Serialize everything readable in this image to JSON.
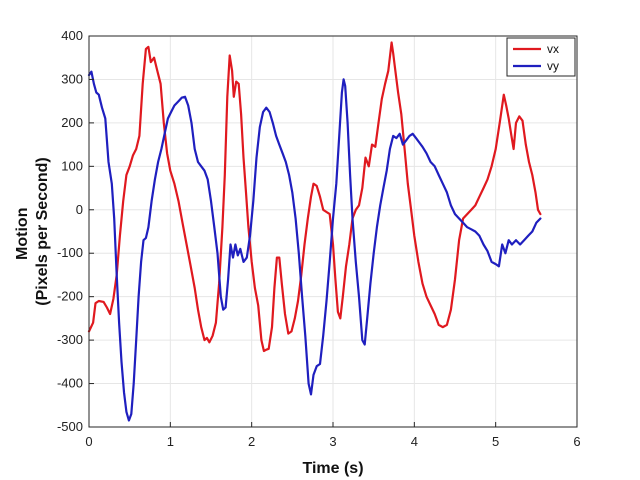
{
  "chart_data": {
    "type": "line",
    "title": "",
    "xlabel": "Time (s)",
    "ylabel_lines": [
      "Motion",
      "(Pixels per Second)"
    ],
    "xlim": [
      0,
      6
    ],
    "ylim": [
      -500,
      400
    ],
    "xticks": [
      0,
      1,
      2,
      3,
      4,
      5,
      6
    ],
    "yticks": [
      -500,
      -400,
      -300,
      -200,
      -100,
      0,
      100,
      200,
      300,
      400
    ],
    "grid": true,
    "legend_position": "top-right",
    "series": [
      {
        "name": "vx",
        "color": "#e0191f",
        "points": [
          [
            0.0,
            -280
          ],
          [
            0.05,
            -260
          ],
          [
            0.08,
            -215
          ],
          [
            0.12,
            -210
          ],
          [
            0.18,
            -212
          ],
          [
            0.22,
            -225
          ],
          [
            0.26,
            -240
          ],
          [
            0.3,
            -205
          ],
          [
            0.34,
            -150
          ],
          [
            0.38,
            -60
          ],
          [
            0.42,
            20
          ],
          [
            0.46,
            80
          ],
          [
            0.5,
            100
          ],
          [
            0.54,
            125
          ],
          [
            0.58,
            140
          ],
          [
            0.62,
            170
          ],
          [
            0.66,
            290
          ],
          [
            0.7,
            370
          ],
          [
            0.73,
            375
          ],
          [
            0.76,
            340
          ],
          [
            0.8,
            350
          ],
          [
            0.84,
            320
          ],
          [
            0.88,
            290
          ],
          [
            0.92,
            200
          ],
          [
            0.96,
            130
          ],
          [
            1.0,
            90
          ],
          [
            1.05,
            60
          ],
          [
            1.1,
            20
          ],
          [
            1.15,
            -30
          ],
          [
            1.2,
            -80
          ],
          [
            1.25,
            -130
          ],
          [
            1.3,
            -180
          ],
          [
            1.34,
            -230
          ],
          [
            1.38,
            -270
          ],
          [
            1.42,
            -300
          ],
          [
            1.45,
            -295
          ],
          [
            1.48,
            -305
          ],
          [
            1.52,
            -290
          ],
          [
            1.56,
            -260
          ],
          [
            1.6,
            -170
          ],
          [
            1.64,
            -40
          ],
          [
            1.67,
            80
          ],
          [
            1.7,
            260
          ],
          [
            1.73,
            355
          ],
          [
            1.76,
            320
          ],
          [
            1.78,
            260
          ],
          [
            1.81,
            295
          ],
          [
            1.84,
            290
          ],
          [
            1.87,
            220
          ],
          [
            1.9,
            120
          ],
          [
            1.93,
            40
          ],
          [
            1.96,
            -40
          ],
          [
            2.0,
            -120
          ],
          [
            2.04,
            -180
          ],
          [
            2.08,
            -220
          ],
          [
            2.12,
            -300
          ],
          [
            2.15,
            -325
          ],
          [
            2.18,
            -322
          ],
          [
            2.21,
            -320
          ],
          [
            2.25,
            -270
          ],
          [
            2.28,
            -180
          ],
          [
            2.31,
            -110
          ],
          [
            2.34,
            -110
          ],
          [
            2.37,
            -170
          ],
          [
            2.41,
            -240
          ],
          [
            2.45,
            -285
          ],
          [
            2.49,
            -280
          ],
          [
            2.53,
            -250
          ],
          [
            2.57,
            -210
          ],
          [
            2.61,
            -150
          ],
          [
            2.65,
            -80
          ],
          [
            2.69,
            -20
          ],
          [
            2.73,
            30
          ],
          [
            2.76,
            60
          ],
          [
            2.8,
            55
          ],
          [
            2.84,
            30
          ],
          [
            2.88,
            0
          ],
          [
            2.92,
            -5
          ],
          [
            2.96,
            -10
          ],
          [
            3.0,
            -80
          ],
          [
            3.03,
            -160
          ],
          [
            3.06,
            -235
          ],
          [
            3.09,
            -250
          ],
          [
            3.12,
            -200
          ],
          [
            3.16,
            -130
          ],
          [
            3.2,
            -80
          ],
          [
            3.24,
            -20
          ],
          [
            3.28,
            0
          ],
          [
            3.32,
            10
          ],
          [
            3.36,
            50
          ],
          [
            3.4,
            120
          ],
          [
            3.44,
            100
          ],
          [
            3.48,
            150
          ],
          [
            3.52,
            145
          ],
          [
            3.56,
            200
          ],
          [
            3.6,
            255
          ],
          [
            3.64,
            290
          ],
          [
            3.68,
            320
          ],
          [
            3.72,
            385
          ],
          [
            3.74,
            360
          ],
          [
            3.76,
            330
          ],
          [
            3.8,
            270
          ],
          [
            3.84,
            220
          ],
          [
            3.88,
            140
          ],
          [
            3.92,
            60
          ],
          [
            3.96,
            0
          ],
          [
            4.0,
            -60
          ],
          [
            4.05,
            -120
          ],
          [
            4.1,
            -170
          ],
          [
            4.15,
            -200
          ],
          [
            4.2,
            -220
          ],
          [
            4.25,
            -240
          ],
          [
            4.3,
            -265
          ],
          [
            4.35,
            -270
          ],
          [
            4.4,
            -265
          ],
          [
            4.45,
            -230
          ],
          [
            4.5,
            -160
          ],
          [
            4.55,
            -70
          ],
          [
            4.6,
            -20
          ],
          [
            4.65,
            -10
          ],
          [
            4.7,
            0
          ],
          [
            4.75,
            10
          ],
          [
            4.8,
            30
          ],
          [
            4.85,
            50
          ],
          [
            4.9,
            70
          ],
          [
            4.95,
            100
          ],
          [
            5.0,
            140
          ],
          [
            5.05,
            200
          ],
          [
            5.1,
            265
          ],
          [
            5.13,
            240
          ],
          [
            5.16,
            210
          ],
          [
            5.19,
            175
          ],
          [
            5.22,
            140
          ],
          [
            5.25,
            200
          ],
          [
            5.29,
            215
          ],
          [
            5.33,
            205
          ],
          [
            5.37,
            150
          ],
          [
            5.41,
            110
          ],
          [
            5.45,
            80
          ],
          [
            5.49,
            40
          ],
          [
            5.52,
            0
          ],
          [
            5.55,
            -10
          ]
        ]
      },
      {
        "name": "vy",
        "color": "#1f1fbf",
        "points": [
          [
            0.0,
            310
          ],
          [
            0.03,
            318
          ],
          [
            0.06,
            290
          ],
          [
            0.09,
            270
          ],
          [
            0.12,
            265
          ],
          [
            0.16,
            235
          ],
          [
            0.2,
            210
          ],
          [
            0.24,
            110
          ],
          [
            0.28,
            60
          ],
          [
            0.31,
            -20
          ],
          [
            0.34,
            -150
          ],
          [
            0.37,
            -260
          ],
          [
            0.4,
            -350
          ],
          [
            0.43,
            -420
          ],
          [
            0.46,
            -465
          ],
          [
            0.49,
            -485
          ],
          [
            0.52,
            -470
          ],
          [
            0.55,
            -400
          ],
          [
            0.58,
            -300
          ],
          [
            0.61,
            -200
          ],
          [
            0.64,
            -120
          ],
          [
            0.67,
            -70
          ],
          [
            0.7,
            -65
          ],
          [
            0.73,
            -40
          ],
          [
            0.77,
            20
          ],
          [
            0.81,
            70
          ],
          [
            0.85,
            110
          ],
          [
            0.89,
            140
          ],
          [
            0.93,
            175
          ],
          [
            0.97,
            210
          ],
          [
            1.01,
            225
          ],
          [
            1.05,
            240
          ],
          [
            1.1,
            250
          ],
          [
            1.14,
            258
          ],
          [
            1.18,
            260
          ],
          [
            1.22,
            240
          ],
          [
            1.26,
            200
          ],
          [
            1.3,
            140
          ],
          [
            1.34,
            110
          ],
          [
            1.38,
            100
          ],
          [
            1.42,
            90
          ],
          [
            1.46,
            70
          ],
          [
            1.5,
            20
          ],
          [
            1.54,
            -40
          ],
          [
            1.58,
            -100
          ],
          [
            1.62,
            -200
          ],
          [
            1.65,
            -230
          ],
          [
            1.68,
            -225
          ],
          [
            1.71,
            -160
          ],
          [
            1.74,
            -80
          ],
          [
            1.77,
            -110
          ],
          [
            1.8,
            -80
          ],
          [
            1.83,
            -105
          ],
          [
            1.86,
            -90
          ],
          [
            1.9,
            -120
          ],
          [
            1.94,
            -110
          ],
          [
            1.98,
            -60
          ],
          [
            2.02,
            20
          ],
          [
            2.06,
            120
          ],
          [
            2.1,
            190
          ],
          [
            2.14,
            225
          ],
          [
            2.18,
            235
          ],
          [
            2.22,
            225
          ],
          [
            2.26,
            200
          ],
          [
            2.3,
            170
          ],
          [
            2.34,
            150
          ],
          [
            2.38,
            130
          ],
          [
            2.42,
            110
          ],
          [
            2.46,
            80
          ],
          [
            2.5,
            40
          ],
          [
            2.54,
            -20
          ],
          [
            2.58,
            -100
          ],
          [
            2.62,
            -200
          ],
          [
            2.66,
            -290
          ],
          [
            2.7,
            -400
          ],
          [
            2.73,
            -425
          ],
          [
            2.76,
            -380
          ],
          [
            2.8,
            -360
          ],
          [
            2.84,
            -355
          ],
          [
            2.88,
            -290
          ],
          [
            2.92,
            -210
          ],
          [
            2.96,
            -120
          ],
          [
            3.0,
            -20
          ],
          [
            3.04,
            60
          ],
          [
            3.08,
            180
          ],
          [
            3.11,
            270
          ],
          [
            3.13,
            300
          ],
          [
            3.15,
            285
          ],
          [
            3.18,
            200
          ],
          [
            3.21,
            80
          ],
          [
            3.24,
            -20
          ],
          [
            3.28,
            -120
          ],
          [
            3.32,
            -200
          ],
          [
            3.36,
            -300
          ],
          [
            3.39,
            -310
          ],
          [
            3.42,
            -250
          ],
          [
            3.46,
            -170
          ],
          [
            3.5,
            -100
          ],
          [
            3.54,
            -40
          ],
          [
            3.58,
            10
          ],
          [
            3.62,
            50
          ],
          [
            3.66,
            90
          ],
          [
            3.7,
            140
          ],
          [
            3.74,
            170
          ],
          [
            3.78,
            165
          ],
          [
            3.82,
            175
          ],
          [
            3.86,
            150
          ],
          [
            3.9,
            160
          ],
          [
            3.94,
            170
          ],
          [
            3.98,
            175
          ],
          [
            4.02,
            165
          ],
          [
            4.06,
            155
          ],
          [
            4.1,
            145
          ],
          [
            4.15,
            130
          ],
          [
            4.2,
            110
          ],
          [
            4.25,
            100
          ],
          [
            4.3,
            80
          ],
          [
            4.35,
            60
          ],
          [
            4.4,
            40
          ],
          [
            4.45,
            10
          ],
          [
            4.5,
            -10
          ],
          [
            4.55,
            -20
          ],
          [
            4.6,
            -30
          ],
          [
            4.65,
            -40
          ],
          [
            4.7,
            -45
          ],
          [
            4.75,
            -50
          ],
          [
            4.8,
            -60
          ],
          [
            4.85,
            -80
          ],
          [
            4.9,
            -95
          ],
          [
            4.95,
            -120
          ],
          [
            5.0,
            -125
          ],
          [
            5.04,
            -130
          ],
          [
            5.08,
            -80
          ],
          [
            5.12,
            -100
          ],
          [
            5.16,
            -70
          ],
          [
            5.2,
            -80
          ],
          [
            5.25,
            -70
          ],
          [
            5.3,
            -80
          ],
          [
            5.35,
            -70
          ],
          [
            5.4,
            -60
          ],
          [
            5.45,
            -50
          ],
          [
            5.5,
            -30
          ],
          [
            5.55,
            -20
          ]
        ]
      }
    ]
  }
}
